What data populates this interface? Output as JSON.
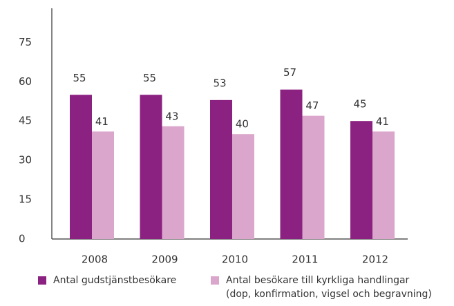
{
  "chart_data": {
    "type": "bar",
    "categories": [
      "2008",
      "2009",
      "2010",
      "2011",
      "2012"
    ],
    "series": [
      {
        "name": "Antal gudstjänstbesökare",
        "color": "#8b2181",
        "values": [
          55,
          55,
          53,
          57,
          45
        ]
      },
      {
        "name": "Antal besökare till kyrkliga handlingar\n(dop, konfirmation, vigsel och begravning)",
        "color": "#dba6cc",
        "values": [
          41,
          43,
          40,
          47,
          41
        ]
      }
    ],
    "ylim": [
      0,
      88
    ],
    "yticks": [
      0,
      15,
      30,
      45,
      60,
      75
    ],
    "grid": false,
    "legend": "bottom"
  }
}
